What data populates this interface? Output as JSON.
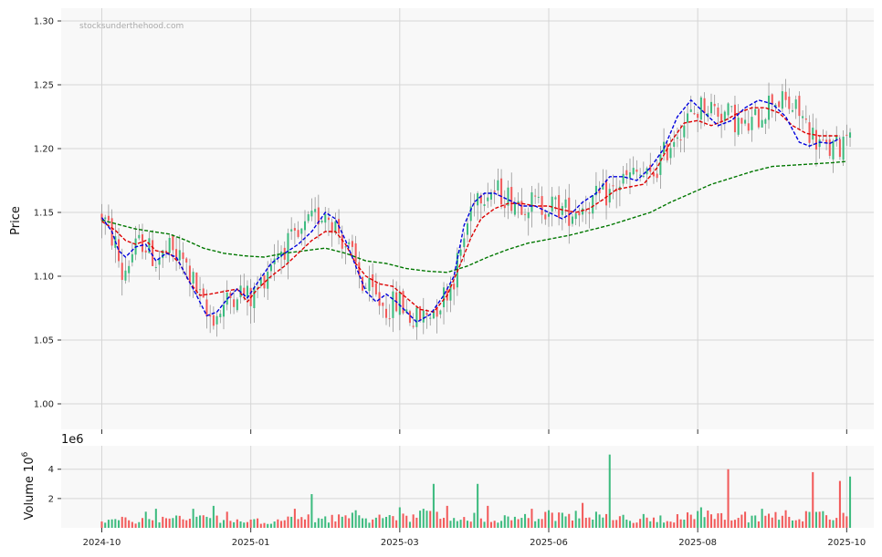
{
  "chart_data": {
    "type": "candlestick",
    "watermark": "stocksunderthehood.com",
    "price_panel": {
      "ylabel": "Price",
      "ylim": [
        0.98,
        1.31
      ],
      "yticks": [
        1.0,
        1.05,
        1.1,
        1.15,
        1.2,
        1.25,
        1.3
      ],
      "ytick_labels": [
        "1.00",
        "1.05",
        "1.10",
        "1.15",
        "1.20",
        "1.25",
        "1.30"
      ],
      "grid": true
    },
    "volume_panel": {
      "ylabel": "Volume  10",
      "ylabel_sup": "6",
      "offset_text": "1e6",
      "ylim": [
        0,
        5.6
      ],
      "yticks": [
        2,
        4
      ],
      "ytick_labels": [
        "2",
        "4"
      ],
      "grid": true
    },
    "x_ticks": [
      {
        "index": 0,
        "label": "2024-10"
      },
      {
        "index": 44,
        "label": "2025-01"
      },
      {
        "index": 88,
        "label": "2025-03"
      },
      {
        "index": 132,
        "label": "2025-06"
      },
      {
        "index": 176,
        "label": "2025-08"
      },
      {
        "index": 220,
        "label": "2025-10"
      }
    ],
    "x_range": [
      -12,
      228
    ],
    "colors": {
      "up": "#3dbb7f",
      "down": "#f25a5a",
      "wick": "#888888",
      "ma_short": "#0000dd",
      "ma_mid": "#dd0000",
      "ma_long": "#007700"
    },
    "price_anchors": [
      [
        0,
        1.148
      ],
      [
        4,
        1.125
      ],
      [
        6,
        1.1
      ],
      [
        9,
        1.118
      ],
      [
        12,
        1.128
      ],
      [
        16,
        1.112
      ],
      [
        20,
        1.12
      ],
      [
        24,
        1.112
      ],
      [
        28,
        1.09
      ],
      [
        31,
        1.068
      ],
      [
        34,
        1.07
      ],
      [
        37,
        1.08
      ],
      [
        40,
        1.09
      ],
      [
        44,
        1.082
      ],
      [
        47,
        1.095
      ],
      [
        51,
        1.118
      ],
      [
        55,
        1.125
      ],
      [
        58,
        1.128
      ],
      [
        61,
        1.14
      ],
      [
        66,
        1.152
      ],
      [
        69,
        1.14
      ],
      [
        73,
        1.12
      ],
      [
        77,
        1.094
      ],
      [
        80,
        1.085
      ],
      [
        84,
        1.075
      ],
      [
        88,
        1.08
      ],
      [
        92,
        1.065
      ],
      [
        96,
        1.07
      ],
      [
        100,
        1.08
      ],
      [
        104,
        1.1
      ],
      [
        107,
        1.13
      ],
      [
        110,
        1.165
      ],
      [
        114,
        1.168
      ],
      [
        118,
        1.165
      ],
      [
        122,
        1.16
      ],
      [
        126,
        1.158
      ],
      [
        130,
        1.155
      ],
      [
        134,
        1.155
      ],
      [
        138,
        1.15
      ],
      [
        142,
        1.155
      ],
      [
        146,
        1.16
      ],
      [
        150,
        1.165
      ],
      [
        154,
        1.175
      ],
      [
        158,
        1.18
      ],
      [
        162,
        1.176
      ],
      [
        166,
        1.195
      ],
      [
        170,
        1.215
      ],
      [
        174,
        1.225
      ],
      [
        178,
        1.235
      ],
      [
        182,
        1.23
      ],
      [
        186,
        1.225
      ],
      [
        190,
        1.215
      ],
      [
        194,
        1.225
      ],
      [
        198,
        1.24
      ],
      [
        202,
        1.235
      ],
      [
        206,
        1.228
      ],
      [
        210,
        1.21
      ],
      [
        214,
        1.198
      ],
      [
        218,
        1.202
      ],
      [
        221,
        1.222
      ]
    ],
    "ma_short": [
      [
        0,
        1.146
      ],
      [
        3,
        1.135
      ],
      [
        5,
        1.12
      ],
      [
        7,
        1.115
      ],
      [
        10,
        1.123
      ],
      [
        13,
        1.125
      ],
      [
        16,
        1.112
      ],
      [
        19,
        1.118
      ],
      [
        22,
        1.115
      ],
      [
        25,
        1.1
      ],
      [
        28,
        1.085
      ],
      [
        31,
        1.069
      ],
      [
        34,
        1.072
      ],
      [
        37,
        1.082
      ],
      [
        40,
        1.09
      ],
      [
        43,
        1.083
      ],
      [
        46,
        1.095
      ],
      [
        50,
        1.11
      ],
      [
        54,
        1.118
      ],
      [
        58,
        1.125
      ],
      [
        62,
        1.135
      ],
      [
        66,
        1.15
      ],
      [
        69,
        1.145
      ],
      [
        72,
        1.128
      ],
      [
        75,
        1.108
      ],
      [
        78,
        1.088
      ],
      [
        81,
        1.08
      ],
      [
        84,
        1.086
      ],
      [
        87,
        1.08
      ],
      [
        90,
        1.072
      ],
      [
        93,
        1.064
      ],
      [
        97,
        1.07
      ],
      [
        101,
        1.085
      ],
      [
        104,
        1.1
      ],
      [
        107,
        1.14
      ],
      [
        110,
        1.158
      ],
      [
        113,
        1.165
      ],
      [
        116,
        1.165
      ],
      [
        120,
        1.16
      ],
      [
        124,
        1.155
      ],
      [
        128,
        1.155
      ],
      [
        132,
        1.15
      ],
      [
        136,
        1.145
      ],
      [
        139,
        1.15
      ],
      [
        142,
        1.158
      ],
      [
        146,
        1.165
      ],
      [
        150,
        1.178
      ],
      [
        154,
        1.178
      ],
      [
        158,
        1.175
      ],
      [
        162,
        1.185
      ],
      [
        166,
        1.2
      ],
      [
        170,
        1.225
      ],
      [
        174,
        1.238
      ],
      [
        178,
        1.228
      ],
      [
        182,
        1.218
      ],
      [
        186,
        1.222
      ],
      [
        190,
        1.232
      ],
      [
        194,
        1.238
      ],
      [
        198,
        1.235
      ],
      [
        202,
        1.225
      ],
      [
        206,
        1.205
      ],
      [
        209,
        1.202
      ],
      [
        212,
        1.205
      ],
      [
        215,
        1.204
      ],
      [
        218,
        1.208
      ]
    ],
    "ma_mid": [
      [
        0,
        1.143
      ],
      [
        4,
        1.136
      ],
      [
        7,
        1.128
      ],
      [
        10,
        1.125
      ],
      [
        13,
        1.128
      ],
      [
        16,
        1.12
      ],
      [
        20,
        1.118
      ],
      [
        23,
        1.11
      ],
      [
        26,
        1.095
      ],
      [
        29,
        1.085
      ],
      [
        32,
        1.086
      ],
      [
        36,
        1.088
      ],
      [
        40,
        1.09
      ],
      [
        43,
        1.08
      ],
      [
        46,
        1.09
      ],
      [
        50,
        1.1
      ],
      [
        54,
        1.108
      ],
      [
        58,
        1.118
      ],
      [
        62,
        1.128
      ],
      [
        66,
        1.135
      ],
      [
        69,
        1.135
      ],
      [
        72,
        1.125
      ],
      [
        75,
        1.11
      ],
      [
        78,
        1.1
      ],
      [
        82,
        1.094
      ],
      [
        86,
        1.092
      ],
      [
        90,
        1.083
      ],
      [
        94,
        1.074
      ],
      [
        98,
        1.072
      ],
      [
        102,
        1.085
      ],
      [
        106,
        1.11
      ],
      [
        109,
        1.13
      ],
      [
        112,
        1.145
      ],
      [
        116,
        1.153
      ],
      [
        120,
        1.157
      ],
      [
        124,
        1.157
      ],
      [
        128,
        1.155
      ],
      [
        132,
        1.155
      ],
      [
        136,
        1.152
      ],
      [
        140,
        1.15
      ],
      [
        144,
        1.153
      ],
      [
        148,
        1.16
      ],
      [
        152,
        1.168
      ],
      [
        156,
        1.17
      ],
      [
        160,
        1.172
      ],
      [
        164,
        1.185
      ],
      [
        168,
        1.205
      ],
      [
        172,
        1.22
      ],
      [
        176,
        1.222
      ],
      [
        180,
        1.218
      ],
      [
        184,
        1.222
      ],
      [
        188,
        1.228
      ],
      [
        192,
        1.232
      ],
      [
        196,
        1.232
      ],
      [
        200,
        1.228
      ],
      [
        204,
        1.218
      ],
      [
        208,
        1.212
      ],
      [
        212,
        1.21
      ],
      [
        218,
        1.21
      ]
    ],
    "ma_long": [
      [
        0,
        1.144
      ],
      [
        10,
        1.137
      ],
      [
        20,
        1.133
      ],
      [
        25,
        1.128
      ],
      [
        30,
        1.122
      ],
      [
        36,
        1.118
      ],
      [
        42,
        1.116
      ],
      [
        48,
        1.115
      ],
      [
        54,
        1.118
      ],
      [
        60,
        1.12
      ],
      [
        66,
        1.122
      ],
      [
        72,
        1.118
      ],
      [
        78,
        1.112
      ],
      [
        84,
        1.11
      ],
      [
        90,
        1.106
      ],
      [
        96,
        1.104
      ],
      [
        102,
        1.103
      ],
      [
        108,
        1.108
      ],
      [
        114,
        1.115
      ],
      [
        120,
        1.121
      ],
      [
        126,
        1.126
      ],
      [
        132,
        1.129
      ],
      [
        138,
        1.132
      ],
      [
        144,
        1.136
      ],
      [
        150,
        1.14
      ],
      [
        156,
        1.145
      ],
      [
        162,
        1.15
      ],
      [
        168,
        1.158
      ],
      [
        174,
        1.165
      ],
      [
        180,
        1.172
      ],
      [
        186,
        1.177
      ],
      [
        192,
        1.182
      ],
      [
        198,
        1.186
      ],
      [
        204,
        1.187
      ],
      [
        210,
        1.188
      ],
      [
        216,
        1.189
      ],
      [
        220,
        1.19
      ]
    ],
    "volume_anchors": [
      [
        0,
        0.7
      ],
      [
        10,
        0.6
      ],
      [
        20,
        0.8
      ],
      [
        30,
        1.0
      ],
      [
        40,
        0.5
      ],
      [
        50,
        0.6
      ],
      [
        60,
        0.8
      ],
      [
        70,
        0.9
      ],
      [
        80,
        0.8
      ],
      [
        90,
        1.0
      ],
      [
        100,
        1.1
      ],
      [
        110,
        0.9
      ],
      [
        120,
        0.8
      ],
      [
        130,
        0.9
      ],
      [
        140,
        1.0
      ],
      [
        150,
        0.9
      ],
      [
        160,
        0.8
      ],
      [
        170,
        0.9
      ],
      [
        180,
        1.0
      ],
      [
        190,
        0.9
      ],
      [
        200,
        1.0
      ],
      [
        210,
        1.0
      ],
      [
        220,
        1.0
      ]
    ],
    "volume_spikes": [
      [
        13,
        1.1
      ],
      [
        16,
        1.3
      ],
      [
        27,
        1.3
      ],
      [
        33,
        1.5
      ],
      [
        37,
        1.1
      ],
      [
        57,
        1.3
      ],
      [
        62,
        2.3
      ],
      [
        75,
        1.2
      ],
      [
        88,
        1.4
      ],
      [
        95,
        1.3
      ],
      [
        98,
        3.0
      ],
      [
        102,
        1.5
      ],
      [
        111,
        3.0
      ],
      [
        114,
        1.5
      ],
      [
        127,
        1.3
      ],
      [
        132,
        1.2
      ],
      [
        142,
        1.7
      ],
      [
        150,
        5.0
      ],
      [
        177,
        1.4
      ],
      [
        183,
        1.0
      ],
      [
        185,
        4.0
      ],
      [
        190,
        1.1
      ],
      [
        195,
        1.3
      ],
      [
        202,
        1.2
      ],
      [
        210,
        3.8
      ],
      [
        212,
        1.1
      ],
      [
        218,
        3.2
      ],
      [
        221,
        3.5
      ]
    ],
    "n_bars": 222
  }
}
